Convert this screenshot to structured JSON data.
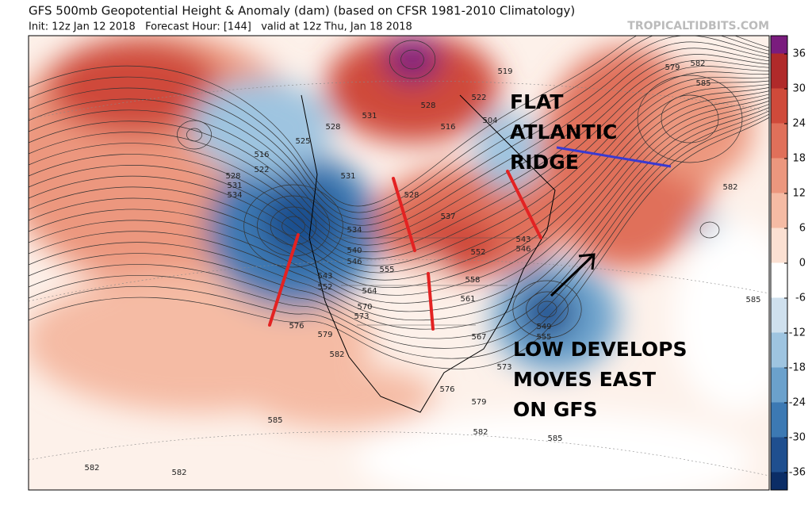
{
  "header": {
    "title": "GFS 500mb Geopotential Height & Anomaly (dam) (based on CFSR 1981-2010 Climatology)",
    "subtitle": "Init: 12z Jan 12 2018   Forecast Hour: [144]   valid at 12z Thu, Jan 18 2018",
    "watermark": "TROPICALTIDBITS.COM"
  },
  "annotations": {
    "ridge": [
      "FLAT",
      "ATLANTIC",
      "RIDGE"
    ],
    "low": [
      "LOW DEVELOPS",
      "MOVES EAST",
      "ON GFS"
    ]
  },
  "contour_labels": [
    "579",
    "582",
    "585",
    "519",
    "522",
    "528",
    "531",
    "516",
    "504",
    "528",
    "525",
    "516",
    "522",
    "528",
    "531",
    "534",
    "531",
    "528",
    "537",
    "534",
    "540",
    "546",
    "543",
    "552",
    "555",
    "558",
    "564",
    "561",
    "570",
    "573",
    "576",
    "579",
    "582",
    "567",
    "549",
    "555",
    "573",
    "576",
    "579",
    "582",
    "585",
    "585",
    "585",
    "582",
    "582",
    "582",
    "552",
    "543",
    "546"
  ],
  "colorbar": {
    "vlim": [
      -36,
      36
    ],
    "ticks": [
      36,
      30,
      24,
      18,
      12,
      6,
      0,
      -6,
      -12,
      -18,
      -24,
      -30,
      -36
    ],
    "colors": [
      "#7a1c7e",
      "#b02a2a",
      "#cf4a3a",
      "#e0705a",
      "#ec977e",
      "#f5bba4",
      "#fbe0d2",
      "#ffffff",
      "#cfe0ee",
      "#9ec4e0",
      "#6ba1cc",
      "#3c79b3",
      "#1f4f8f",
      "#0b2d66"
    ]
  }
}
